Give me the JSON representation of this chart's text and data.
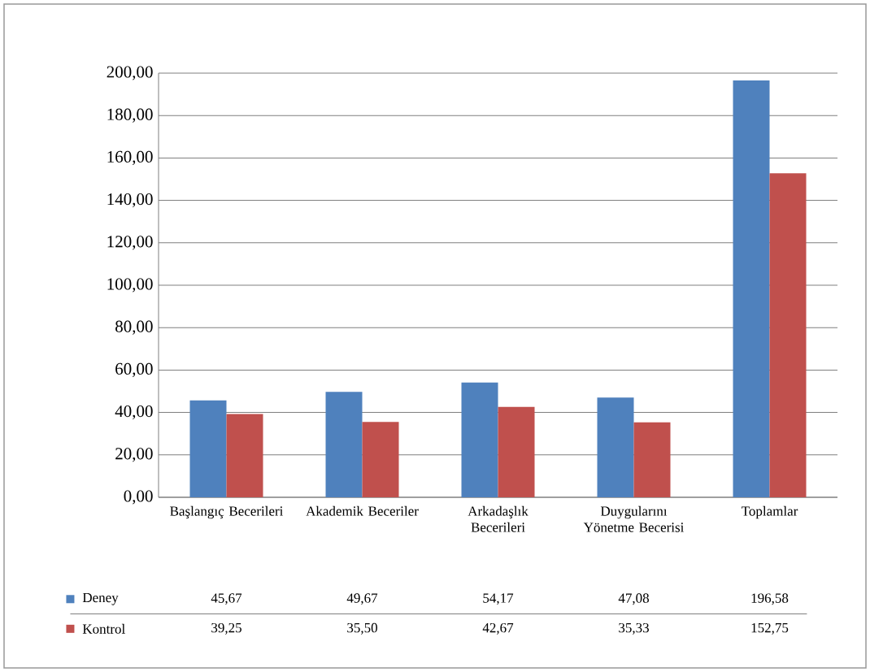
{
  "chart_data": {
    "type": "bar",
    "categories": [
      "Başlangıç Becerileri",
      "Akademik Beceriler",
      "Arkadaşlık Becerileri",
      "Duygularını Yönetme Becerisi",
      "Toplamlar"
    ],
    "series": [
      {
        "name": "Deney",
        "color": "#4f81bd",
        "values": [
          45.67,
          49.67,
          54.17,
          47.08,
          196.58
        ],
        "value_labels": [
          "45,67",
          "49,67",
          "54,17",
          "47,08",
          "196,58"
        ]
      },
      {
        "name": "Kontrol",
        "color": "#c0504d",
        "values": [
          39.25,
          35.5,
          42.67,
          35.33,
          152.75
        ],
        "value_labels": [
          "39,25",
          "35,50",
          "42,67",
          "35,33",
          "152,75"
        ]
      }
    ],
    "ylim": [
      0,
      200
    ],
    "yticks": [
      {
        "value": 0,
        "label": "0,00"
      },
      {
        "value": 20,
        "label": "20,00"
      },
      {
        "value": 40,
        "label": "40,00"
      },
      {
        "value": 60,
        "label": "60,00"
      },
      {
        "value": 80,
        "label": "80,00"
      },
      {
        "value": 100,
        "label": "100,00"
      },
      {
        "value": 120,
        "label": "120,00"
      },
      {
        "value": 140,
        "label": "140,00"
      },
      {
        "value": 160,
        "label": "160,00"
      },
      {
        "value": 180,
        "label": "180,00"
      },
      {
        "value": 200,
        "label": "200,00"
      }
    ],
    "grid": "y",
    "legend": "bottom"
  }
}
